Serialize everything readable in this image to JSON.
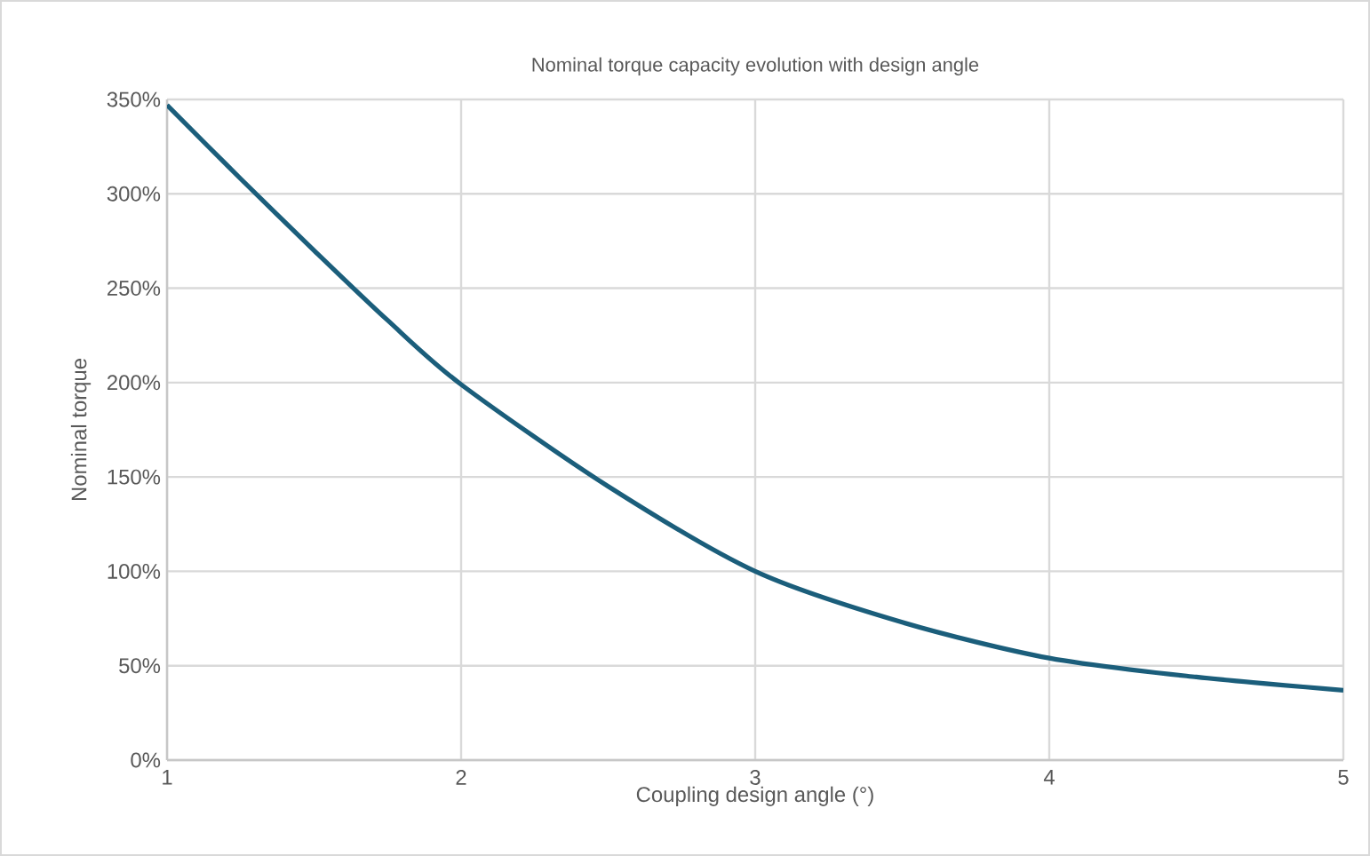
{
  "chart_data": {
    "type": "line",
    "title": "Nominal torque capacity evolution with design angle",
    "xlabel": "Coupling design angle (°)",
    "ylabel": "Nominal torque",
    "x": [
      1,
      1.25,
      1.5,
      1.75,
      2,
      2.5,
      3,
      3.5,
      4,
      4.5,
      5
    ],
    "series": [
      {
        "color": "#1b5e7b",
        "values": [
          347,
          308,
          270,
          233,
          199,
          145,
          100,
          73,
          54,
          44,
          37
        ]
      }
    ],
    "xlim": [
      1,
      5
    ],
    "xticks": [
      1,
      2,
      3,
      4,
      5
    ],
    "ylim": [
      0,
      350
    ],
    "yticks": [
      {
        "value": 0,
        "label": "0%"
      },
      {
        "value": 50,
        "label": "50%"
      },
      {
        "value": 100,
        "label": "100%"
      },
      {
        "value": 150,
        "label": "150%"
      },
      {
        "value": 200,
        "label": "200%"
      },
      {
        "value": 250,
        "label": "250%"
      },
      {
        "value": 300,
        "label": "300%"
      },
      {
        "value": 350,
        "label": "350%"
      }
    ],
    "grid": true,
    "marker": "none",
    "line_style": "solid"
  }
}
